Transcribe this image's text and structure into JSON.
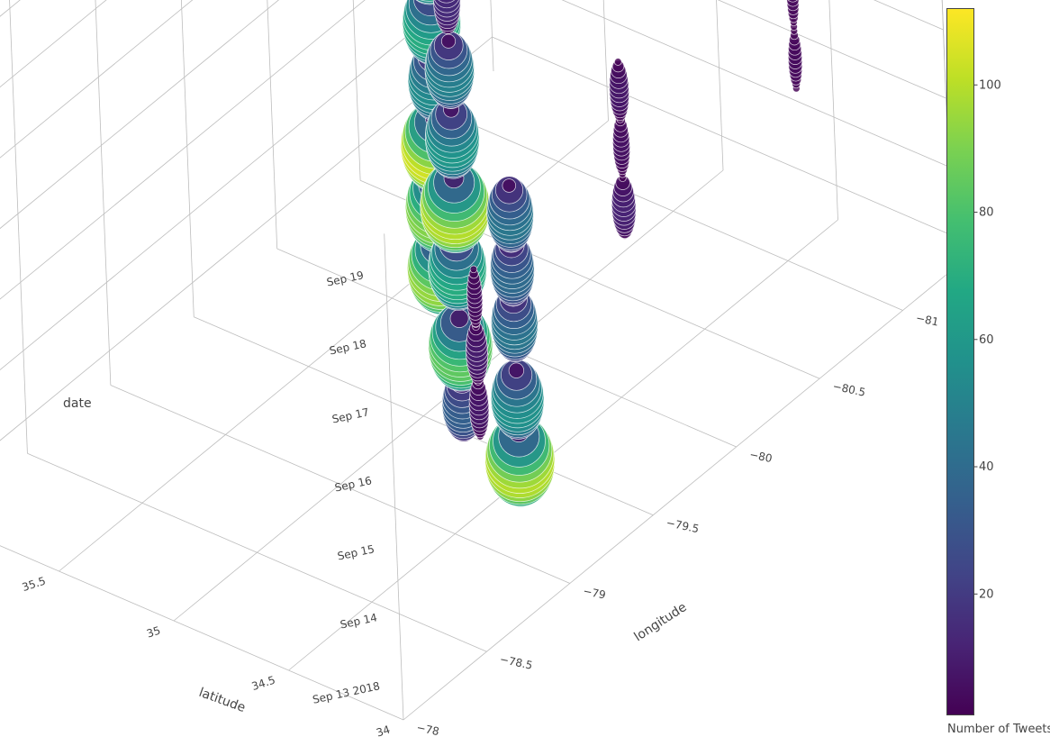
{
  "chart_data": {
    "type": "scatter3d-bubble",
    "title": "",
    "axes": {
      "x": {
        "label": "latitude",
        "ticks": [
          "34",
          "34.5",
          "35",
          "35.5"
        ]
      },
      "y": {
        "label": "longitude",
        "ticks": [
          "−78",
          "−78.5",
          "−79",
          "−79.5",
          "−80",
          "−80.5",
          "−81"
        ]
      },
      "z": {
        "label": "date",
        "ticks": [
          "Sep 13 2018",
          "Sep 14",
          "Sep 15",
          "Sep 16",
          "Sep 17",
          "Sep 18",
          "Sep 19"
        ]
      }
    },
    "colorbar": {
      "title": "Number of Tweets",
      "range": [
        1,
        112
      ],
      "ticks": [
        "20",
        "40",
        "60",
        "80",
        "100"
      ],
      "tick_values": [
        20,
        40,
        60,
        80,
        100
      ],
      "colorscale": "viridis"
    },
    "grid": true,
    "columns": [
      {
        "latitude": 35.2,
        "longitude": -79.9,
        "clusters": [
          {
            "date": 13.55,
            "peak": 95
          },
          {
            "date": 14.45,
            "peak": 92
          },
          {
            "date": 15.35,
            "peak": 105
          },
          {
            "date": 16.3,
            "peak": 55
          },
          {
            "date": 17.15,
            "peak": 70
          },
          {
            "date": 18.05,
            "peak": 78
          },
          {
            "date": 19.0,
            "peak": 50
          }
        ]
      },
      {
        "latitude": 34.9,
        "longitude": -79.6,
        "clusters": [
          {
            "date": 12.6,
            "peak": 35
          },
          {
            "date": 13.45,
            "peak": 85
          },
          {
            "date": 14.6,
            "peak": 70
          },
          {
            "date": 15.5,
            "peak": 100
          },
          {
            "date": 16.5,
            "peak": 60
          },
          {
            "date": 17.5,
            "peak": 50
          },
          {
            "date": 18.5,
            "peak": 15
          }
        ]
      },
      {
        "latitude": 34.6,
        "longitude": -79.3,
        "clusters": [
          {
            "date": 13.6,
            "peak": 8
          },
          {
            "date": 14.4,
            "peak": 10
          },
          {
            "date": 15.2,
            "peak": 5
          }
        ]
      },
      {
        "latitude": 34.2,
        "longitude": -79.0,
        "clusters": [
          {
            "date": 14.0,
            "peak": 100
          },
          {
            "date": 14.9,
            "peak": 58
          },
          {
            "date": 16.0,
            "peak": 45
          },
          {
            "date": 16.8,
            "peak": 40
          },
          {
            "date": 17.6,
            "peak": 45
          }
        ]
      },
      {
        "latitude": 34.0,
        "longitude": -79.4,
        "clusters": [
          {
            "date": 17.2,
            "peak": 12
          },
          {
            "date": 18.1,
            "peak": 6
          },
          {
            "date": 18.9,
            "peak": 8
          }
        ]
      },
      {
        "latitude": 33.9,
        "longitude": -80.3,
        "clusters": [
          {
            "date": 17.7,
            "peak": 4
          },
          {
            "date": 18.6,
            "peak": 3
          }
        ]
      }
    ]
  }
}
